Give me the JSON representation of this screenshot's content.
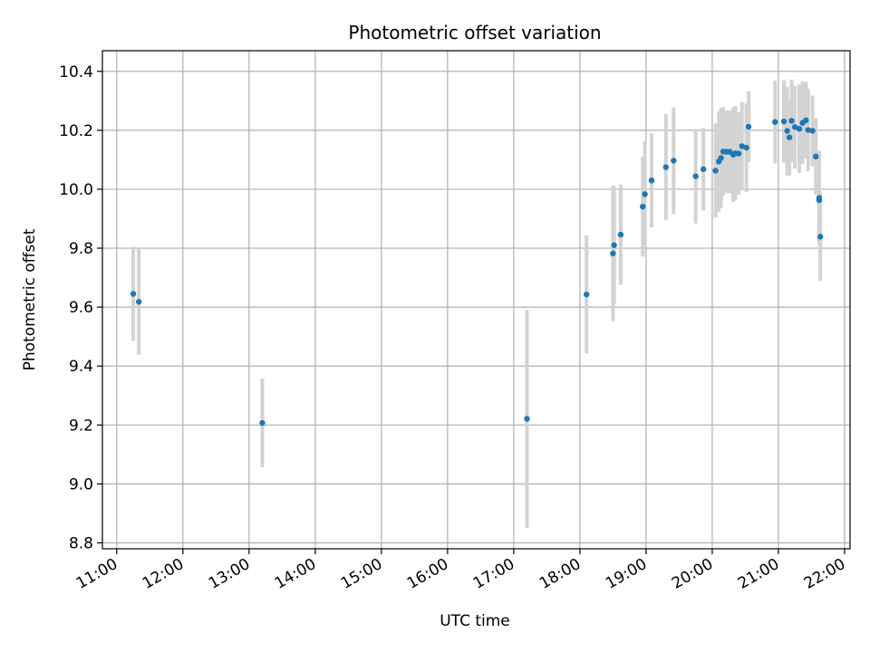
{
  "chart_data": {
    "type": "scatter",
    "title": "Photometric offset variation",
    "xlabel": "UTC time",
    "ylabel": "Photometric offset",
    "x_tick_labels": [
      "11:00",
      "12:00",
      "13:00",
      "14:00",
      "15:00",
      "16:00",
      "17:00",
      "18:00",
      "19:00",
      "20:00",
      "21:00",
      "22:00"
    ],
    "y_tick_labels": [
      "8.8",
      "9.0",
      "9.2",
      "9.4",
      "9.6",
      "9.8",
      "10.0",
      "10.2",
      "10.4"
    ],
    "x_ticks_hours": [
      11,
      12,
      13,
      14,
      15,
      16,
      17,
      18,
      19,
      20,
      21,
      22
    ],
    "y_ticks": [
      8.8,
      9.0,
      9.2,
      9.4,
      9.6,
      9.8,
      10.0,
      10.2,
      10.4
    ],
    "xlim": [
      "10:47",
      "22:05"
    ],
    "ylim": [
      8.78,
      10.47
    ],
    "grid": true,
    "colors": {
      "points": "#1f77b4",
      "errorbars": "#d3d3d3",
      "grid": "#b0b0b0"
    },
    "series": [
      {
        "x": [
          "11:15",
          "11:20",
          "13:12",
          "17:12",
          "18:06",
          "18:30",
          "18:31",
          "18:37",
          "18:57",
          "18:59",
          "19:05",
          "19:18",
          "19:25",
          "19:45",
          "19:52",
          "20:03",
          "20:06",
          "20:08",
          "20:10",
          "20:13",
          "20:16",
          "20:19",
          "20:21",
          "20:24",
          "20:27",
          "20:31",
          "20:33",
          "20:57",
          "21:05",
          "21:08",
          "21:10",
          "21:12",
          "21:15",
          "21:19",
          "21:22",
          "21:25",
          "21:27",
          "21:31",
          "21:34",
          "21:37",
          "21:37",
          "21:38"
        ],
        "y": [
          9.645,
          9.618,
          9.207,
          9.221,
          9.643,
          9.782,
          9.81,
          9.846,
          9.941,
          9.983,
          10.03,
          10.075,
          10.097,
          10.044,
          10.068,
          10.063,
          10.094,
          10.106,
          10.128,
          10.127,
          10.127,
          10.117,
          10.122,
          10.121,
          10.146,
          10.141,
          10.212,
          10.228,
          10.23,
          10.198,
          10.176,
          10.232,
          10.211,
          10.205,
          10.225,
          10.234,
          10.201,
          10.198,
          10.111,
          9.971,
          9.963,
          9.839
        ],
        "err": [
          0.16,
          0.18,
          0.15,
          0.37,
          0.2,
          0.23,
          0.2,
          0.17,
          0.17,
          0.18,
          0.16,
          0.18,
          0.18,
          0.16,
          0.14,
          0.16,
          0.17,
          0.17,
          0.15,
          0.14,
          0.14,
          0.16,
          0.16,
          0.14,
          0.15,
          0.15,
          0.12,
          0.14,
          0.14,
          0.15,
          0.13,
          0.14,
          0.14,
          0.15,
          0.14,
          0.13,
          0.14,
          0.12,
          0.13,
          0.16,
          0.15,
          0.15
        ]
      }
    ]
  }
}
